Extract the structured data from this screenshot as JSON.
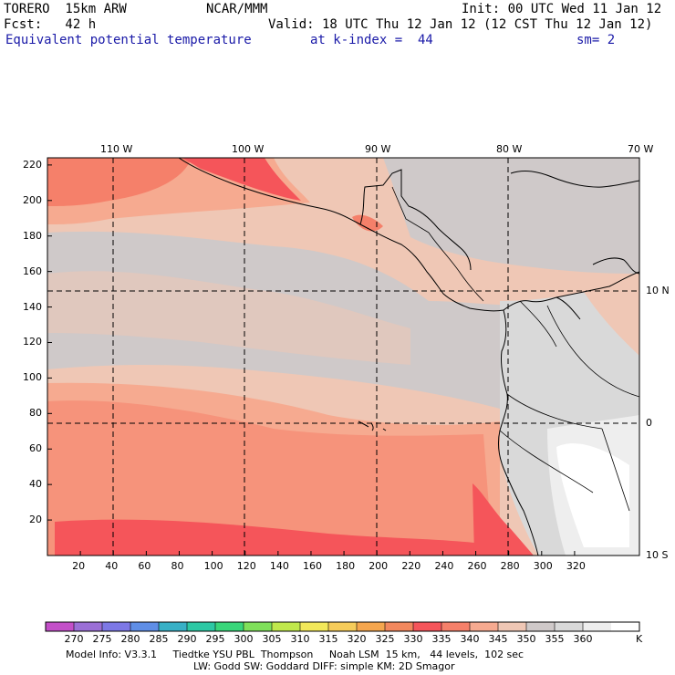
{
  "header": {
    "model": "TORERO  15km ARW",
    "org": "NCAR/MMM",
    "init": "Init: 00 UTC Wed 11 Jan 12",
    "fcst": "Fcst:   42 h",
    "valid": "Valid: 18 UTC Thu 12 Jan 12 (12 CST Thu 12 Jan 12)",
    "field": "Equivalent potential temperature",
    "level": "at k-index =  44",
    "smooth": "sm= 2"
  },
  "map": {
    "x_ticks": [
      "20",
      "40",
      "60",
      "80",
      "100",
      "120",
      "140",
      "160",
      "180",
      "200",
      "220",
      "240",
      "260",
      "280",
      "300",
      "320"
    ],
    "y_ticks": [
      "20",
      "40",
      "60",
      "80",
      "100",
      "120",
      "140",
      "160",
      "180",
      "200",
      "220"
    ],
    "lon_labels": [
      "110 W",
      "100 W",
      "90 W",
      "80 W",
      "70 W"
    ],
    "lat_labels": [
      "10 N",
      "0",
      "10 S"
    ],
    "colors": {
      "c325": "#f2885e",
      "c330": "#f5555a",
      "c335": "#f5806a",
      "c340": "#f6aa90",
      "c345": "#efc7b5",
      "c350": "#cfc9c9",
      "c355": "#d9d9d9",
      "c360": "#eeeeee",
      "c365": "#ffffff"
    }
  },
  "colorbar": {
    "labels": [
      "270",
      "275",
      "280",
      "285",
      "290",
      "295",
      "300",
      "305",
      "310",
      "315",
      "320",
      "325",
      "330",
      "335",
      "340",
      "345",
      "350",
      "355",
      "360"
    ],
    "unit": "K",
    "colors": [
      "#c34fc8",
      "#9b6fd6",
      "#7d78e6",
      "#5f8ee6",
      "#38b0c6",
      "#2dc8a4",
      "#39d67a",
      "#7fe05a",
      "#c0e84c",
      "#f2e85a",
      "#f6cc5a",
      "#f5a64e",
      "#f2885e",
      "#f5555a",
      "#f5806a",
      "#f6aa90",
      "#efc7b5",
      "#cfc9c9",
      "#d9d9d9",
      "#eeeeee",
      "#ffffff"
    ]
  },
  "footer": {
    "line1": "Model Info: V3.3.1     Tiedtke YSU PBL  Thompson     Noah LSM  15 km,   44 levels,  102 sec",
    "line2": "LW: Godd SW: Goddard DIFF: simple KM: 2D Smagor"
  }
}
